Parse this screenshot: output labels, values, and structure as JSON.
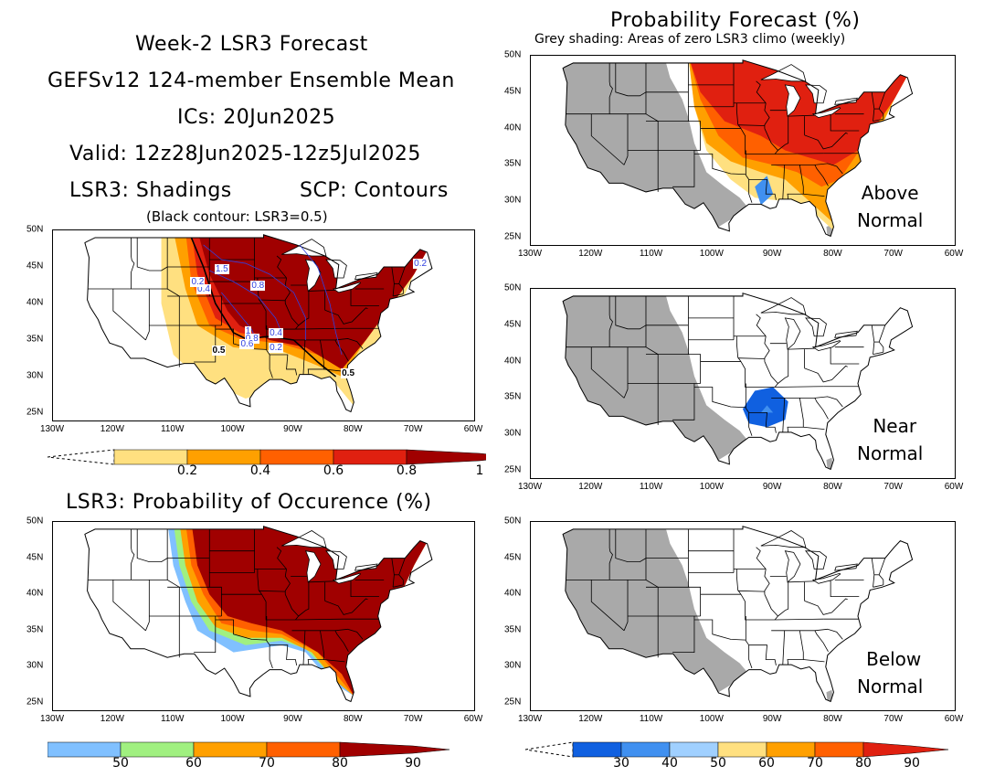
{
  "header": {
    "line1": "Week-2 LSR3 Forecast",
    "line2": "GEFSv12 124-member Ensemble Mean",
    "line3": "ICs: 20Jun2025",
    "line4": "Valid: 12z28Jun2025-12z5Jul2025",
    "shadings": "LSR3: Shadings",
    "contours": "SCP: Contours",
    "black_contour": "(Black contour: LSR3=0.5)"
  },
  "prob_forecast": {
    "title": "Probability Forecast (%)",
    "subtitle": "Grey shading: Areas of zero LSR3 climo (weekly)"
  },
  "occurrence": {
    "title": "LSR3: Probability of Occurence (%)"
  },
  "panels": {
    "above": {
      "line1": "Above",
      "line2": "Normal"
    },
    "near": {
      "line1": "Near",
      "line2": "Normal"
    },
    "below": {
      "line1": "Below",
      "line2": "Normal"
    }
  },
  "axes": {
    "lat_labels": [
      "50N",
      "45N",
      "40N",
      "35N",
      "30N",
      "25N"
    ],
    "lon_labels": [
      "130W",
      "120W",
      "110W",
      "100W",
      "90W",
      "80W",
      "70W",
      "60W"
    ]
  },
  "contour_labels": [
    "1.5",
    "0.8",
    "0.4",
    "0.2",
    "0.4",
    "1",
    "0.8",
    "0.6",
    "0.5",
    "0.2",
    "0.5",
    "0.2"
  ],
  "colorbars": {
    "lsr3": {
      "labels": [
        "0.2",
        "0.4",
        "0.6",
        "0.8",
        "1"
      ],
      "colors": [
        "#ffe080",
        "#ffa000",
        "#ff6000",
        "#e02010",
        "#a00000"
      ]
    },
    "occurrence": {
      "labels": [
        "50",
        "60",
        "70",
        "80",
        "90"
      ],
      "colors": [
        "#80c0ff",
        "#a0f080",
        "#ffa000",
        "#ff6000",
        "#a00000"
      ]
    },
    "probability": {
      "labels": [
        "30",
        "40",
        "50",
        "60",
        "70",
        "80",
        "90"
      ],
      "colors": [
        "#1060e0",
        "#4090f0",
        "#a0d0ff",
        "#ffe080",
        "#ffa000",
        "#ff6000",
        "#e02010"
      ]
    }
  },
  "colors": {
    "grey_zero_climo": "#a9a9a9",
    "map_line": "#000000",
    "contour_blue": "#3040e0"
  }
}
